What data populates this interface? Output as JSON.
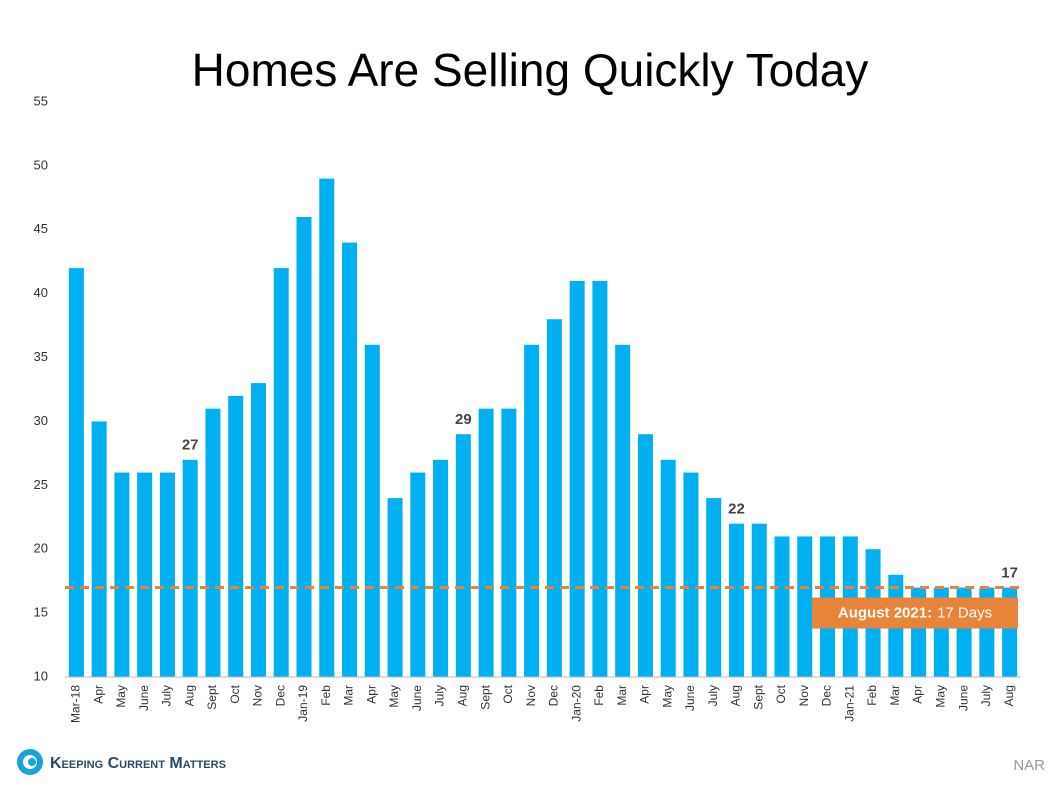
{
  "chart_data": {
    "type": "bar",
    "title": "Homes Are Selling Quickly Today",
    "categories": [
      "Mar-18",
      "Apr",
      "May",
      "June",
      "July",
      "Aug",
      "Sept",
      "Oct",
      "Nov",
      "Dec",
      "Jan-19",
      "Feb",
      "Mar",
      "Apr",
      "May",
      "June",
      "July",
      "Aug",
      "Sept",
      "Oct",
      "Nov",
      "Dec",
      "Jan-20",
      "Feb",
      "Mar",
      "Apr",
      "May",
      "June",
      "July",
      "Aug",
      "Sept",
      "Oct",
      "Nov",
      "Dec",
      "Jan-21",
      "Feb",
      "Mar",
      "Apr",
      "May",
      "June",
      "July",
      "Aug"
    ],
    "values": [
      42,
      30,
      26,
      26,
      26,
      27,
      31,
      32,
      33,
      42,
      46,
      49,
      44,
      36,
      24,
      26,
      27,
      29,
      31,
      31,
      36,
      38,
      41,
      41,
      36,
      29,
      27,
      26,
      24,
      22,
      22,
      21,
      21,
      21,
      21,
      20,
      18,
      17,
      17,
      17,
      17,
      17
    ],
    "value_labels": [
      null,
      null,
      null,
      null,
      null,
      "27",
      null,
      null,
      null,
      null,
      null,
      null,
      null,
      null,
      null,
      null,
      null,
      "29",
      null,
      null,
      null,
      null,
      null,
      null,
      null,
      null,
      null,
      null,
      null,
      "22",
      null,
      null,
      null,
      null,
      null,
      null,
      null,
      null,
      null,
      null,
      null,
      "17"
    ],
    "color": "#00b0f0",
    "ylim": [
      10,
      55
    ],
    "yticks": [
      10,
      15,
      20,
      25,
      30,
      35,
      40,
      45,
      50,
      55
    ],
    "reference_line": {
      "value": 17,
      "color": "#e8833a"
    },
    "annotation": {
      "label": "August 2021:",
      "text": "17 Days",
      "color": "#e8833a"
    }
  },
  "footer": {
    "brand": "Keeping Current Matters",
    "source": "NAR"
  }
}
